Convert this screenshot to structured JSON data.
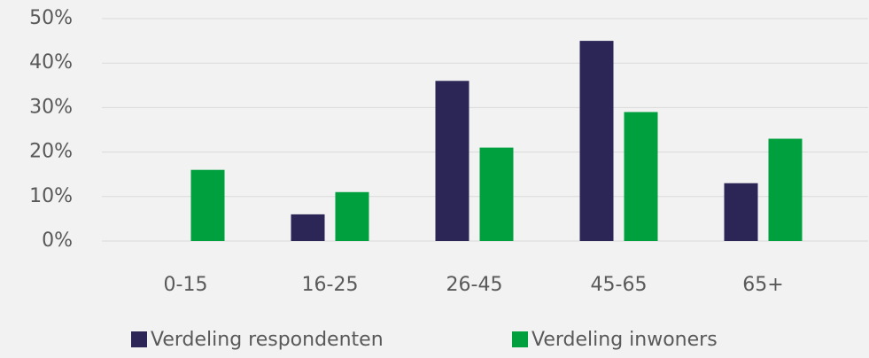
{
  "chart_data": {
    "type": "bar",
    "categories": [
      "0-15",
      "16-25",
      "26-45",
      "45-65",
      "65+"
    ],
    "series": [
      {
        "name": "Verdeling respondenten",
        "color": "#2b2656",
        "values": [
          0,
          6,
          36,
          45,
          13
        ]
      },
      {
        "name": "Verdeling inwoners",
        "color": "#00a03e",
        "values": [
          16,
          11,
          21,
          29,
          23
        ]
      }
    ],
    "ylim": [
      0,
      50
    ],
    "yticks": [
      {
        "value": 0,
        "label": "0%"
      },
      {
        "value": 10,
        "label": "10%"
      },
      {
        "value": 20,
        "label": "20%"
      },
      {
        "value": 30,
        "label": "30%"
      },
      {
        "value": 40,
        "label": "40%"
      },
      {
        "value": 50,
        "label": "50%"
      }
    ],
    "grid": true,
    "legend": "bottom"
  }
}
